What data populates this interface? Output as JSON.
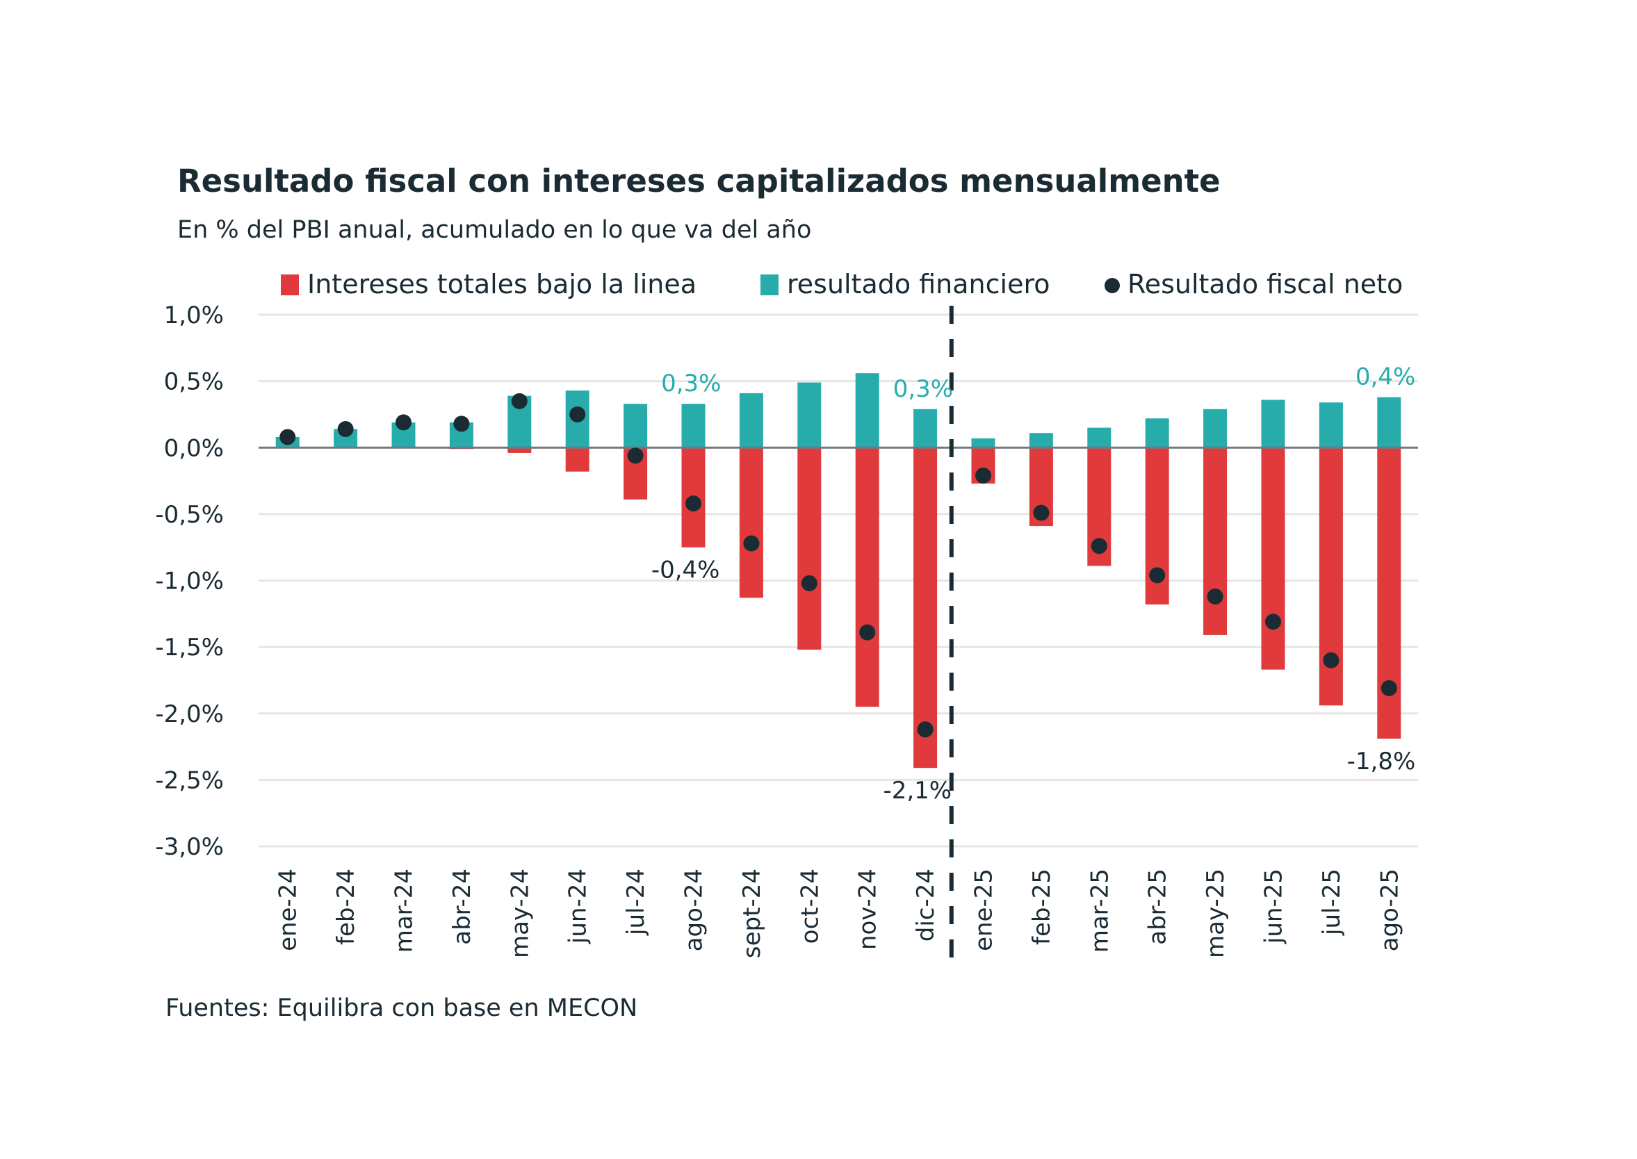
{
  "chart_data": {
    "type": "bar",
    "title": "Resultado fiscal con intereses capitalizados mensualmente",
    "subtitle": "En % del PBI anual, acumulado en lo que va del año",
    "source": "Fuentes: Equilibra con base en MECON",
    "xlabel": "",
    "ylabel": "",
    "ylim": [
      -3.0,
      1.0
    ],
    "yticks": [
      1.0,
      0.5,
      0.0,
      -0.5,
      -1.0,
      -1.5,
      -2.0,
      -2.5,
      -3.0
    ],
    "ytick_labels": [
      "1,0%",
      "0,5%",
      "0,0%",
      "-0,5%",
      "-1,0%",
      "-1,5%",
      "-2,0%",
      "-2,5%",
      "-3,0%"
    ],
    "grid": true,
    "legend_position": "top",
    "categories": [
      "ene-24",
      "feb-24",
      "mar-24",
      "abr-24",
      "may-24",
      "jun-24",
      "jul-24",
      "ago-24",
      "sept-24",
      "oct-24",
      "nov-24",
      "dic-24",
      "ene-25",
      "feb-25",
      "mar-25",
      "abr-25",
      "may-25",
      "jun-25",
      "jul-25",
      "ago-25"
    ],
    "series": [
      {
        "name": "Intereses totales bajo la linea",
        "type": "bar",
        "color": "#e03a3c",
        "values": [
          0.0,
          0.0,
          0.0,
          -0.01,
          -0.04,
          -0.18,
          -0.39,
          -0.75,
          -1.13,
          -1.52,
          -1.95,
          -2.41,
          -0.27,
          -0.59,
          -0.89,
          -1.18,
          -1.41,
          -1.67,
          -1.94,
          -2.19
        ]
      },
      {
        "name": "resultado financiero",
        "type": "bar",
        "color": "#27acab",
        "values": [
          0.08,
          0.14,
          0.19,
          0.19,
          0.39,
          0.43,
          0.33,
          0.33,
          0.41,
          0.49,
          0.56,
          0.29,
          0.07,
          0.11,
          0.15,
          0.22,
          0.29,
          0.36,
          0.34,
          0.38
        ]
      },
      {
        "name": "Resultado fiscal neto",
        "type": "scatter",
        "color": "#1b2b33",
        "values": [
          0.08,
          0.14,
          0.19,
          0.18,
          0.35,
          0.25,
          -0.06,
          -0.42,
          -0.72,
          -1.02,
          -1.39,
          -2.12,
          -0.21,
          -0.49,
          -0.74,
          -0.96,
          -1.12,
          -1.31,
          -1.6,
          -1.81
        ]
      }
    ],
    "divider": {
      "between": [
        "dic-24",
        "ene-25"
      ],
      "style": "dashed"
    },
    "annotations": [
      {
        "category": "ago-24",
        "series": "resultado financiero",
        "text": "0,3%",
        "color": "#27acab"
      },
      {
        "category": "ago-24",
        "series": "Resultado fiscal neto",
        "text": "-0,4%",
        "color": "#1b2b33"
      },
      {
        "category": "dic-24",
        "series": "resultado financiero",
        "text": "0,3%",
        "color": "#27acab"
      },
      {
        "category": "dic-24",
        "series": "Resultado fiscal neto",
        "text": "-2,1%",
        "color": "#1b2b33"
      },
      {
        "category": "ago-25",
        "series": "resultado financiero",
        "text": "0,4%",
        "color": "#27acab"
      },
      {
        "category": "ago-25",
        "series": "Resultado fiscal neto",
        "text": "-1,8%",
        "color": "#1b2b33"
      }
    ]
  }
}
